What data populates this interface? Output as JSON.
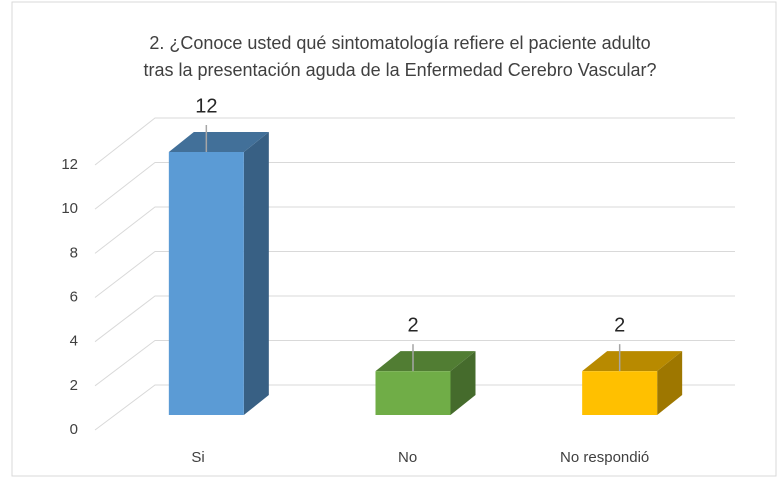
{
  "chart_data": {
    "type": "bar3d",
    "title": [
      "2. ¿Conoce usted qué sintomatología refiere el paciente adulto",
      "tras la presentación aguda de la Enfermedad Cerebro Vascular?"
    ],
    "categories": [
      "Si",
      "No",
      "No respondió"
    ],
    "values": [
      12,
      2,
      2
    ],
    "colors": [
      "#5b9bd5",
      "#70ad47",
      "#ffc000"
    ],
    "ylim": [
      0,
      12
    ],
    "yticks": [
      0,
      2,
      4,
      6,
      8,
      10,
      12
    ],
    "grid": true
  }
}
